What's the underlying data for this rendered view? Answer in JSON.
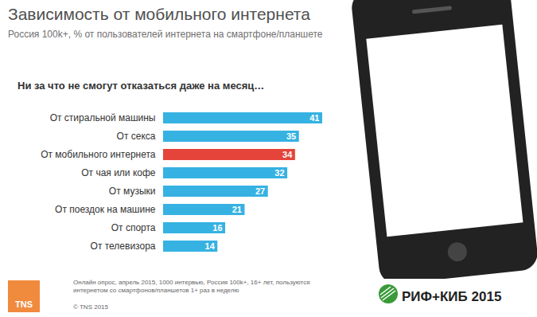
{
  "chart_data": {
    "type": "bar",
    "orientation": "horizontal",
    "title": "Зависимость от мобильного интернета",
    "subtitle": "Россия 100k+, % от пользователей интернета на смартфоне/планшете",
    "question": "Ни за что не смогут отказаться даже на месяц…",
    "categories": [
      "От стиральной машины",
      "От секса",
      "От мобильного интернета",
      "От чая или кофе",
      "От музыки",
      "От поездок на машине",
      "От спорта",
      "От телевизора"
    ],
    "values": [
      41,
      35,
      34,
      32,
      27,
      21,
      16,
      14
    ],
    "colors": [
      "#36b2e2",
      "#36b2e2",
      "#e5443a",
      "#36b2e2",
      "#36b2e2",
      "#36b2e2",
      "#36b2e2",
      "#36b2e2"
    ],
    "xlim": [
      0,
      41
    ],
    "data_labels": true,
    "tick_labels": "y",
    "grid": false,
    "note": "Онлайн опрос, апрель 2015, 1000 интервью, Россия 100k+, 16+ лет, пользуются интернетом со смартфонов/планшетов 1+ раз в неделю",
    "copyright": "© TNS 2015",
    "logo_left": "TNS",
    "logo_right": "РИФ+КИБ 2015"
  }
}
